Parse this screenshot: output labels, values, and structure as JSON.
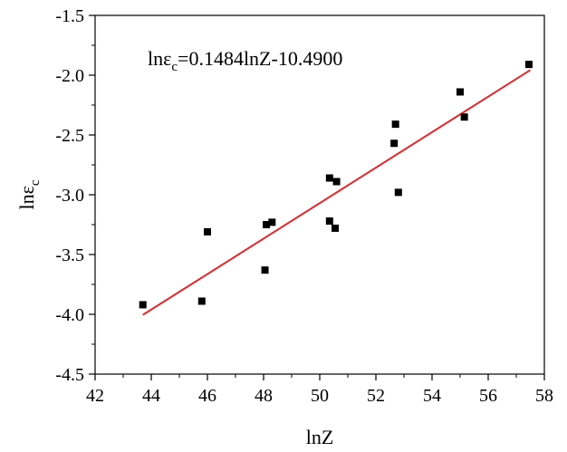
{
  "chart_data": {
    "type": "scatter",
    "title": "",
    "xlabel": "lnZ",
    "ylabel": {
      "base": "lnε",
      "sub": "c"
    },
    "xlim": [
      42,
      58
    ],
    "ylim": [
      -4.5,
      -1.5
    ],
    "xticks": [
      42,
      44,
      46,
      48,
      50,
      52,
      54,
      56,
      58
    ],
    "yticks": [
      -4.5,
      -4.0,
      -3.5,
      -3.0,
      -2.5,
      -2.0,
      -1.5
    ],
    "xtick_labels": [
      "42",
      "44",
      "46",
      "48",
      "50",
      "52",
      "54",
      "56",
      "58"
    ],
    "ytick_labels": [
      "-4.5",
      "-4.0",
      "-3.5",
      "-3.0",
      "-2.5",
      "-2.0",
      "-1.5"
    ],
    "grid": false,
    "points": [
      {
        "x": 43.7,
        "y": -3.92
      },
      {
        "x": 45.8,
        "y": -3.89
      },
      {
        "x": 46.0,
        "y": -3.31
      },
      {
        "x": 48.05,
        "y": -3.63
      },
      {
        "x": 48.1,
        "y": -3.25
      },
      {
        "x": 48.3,
        "y": -3.23
      },
      {
        "x": 50.35,
        "y": -2.86
      },
      {
        "x": 50.35,
        "y": -3.22
      },
      {
        "x": 50.55,
        "y": -3.28
      },
      {
        "x": 50.6,
        "y": -2.89
      },
      {
        "x": 52.65,
        "y": -2.57
      },
      {
        "x": 52.7,
        "y": -2.41
      },
      {
        "x": 52.8,
        "y": -2.98
      },
      {
        "x": 55.0,
        "y": -2.14
      },
      {
        "x": 55.15,
        "y": -2.35
      },
      {
        "x": 57.45,
        "y": -1.91
      }
    ],
    "fit_line": {
      "x": [
        43.7,
        57.5
      ],
      "slope": 0.1484,
      "intercept": -10.49,
      "color": "#e8262a"
    },
    "annotation": {
      "pre": "lnε",
      "sub": "c",
      "post": "=0.1484lnZ-10.4900"
    },
    "marker_color": "#000000"
  }
}
